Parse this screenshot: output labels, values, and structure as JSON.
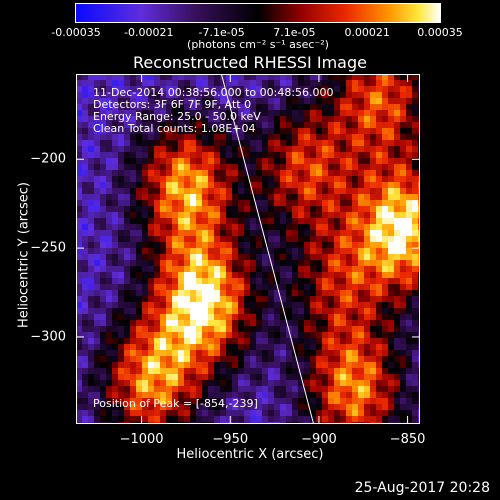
{
  "chart_data": {
    "type": "heatmap",
    "title": "Reconstructed RHESSI Image",
    "xlabel": "Heliocentric X (arcsec)",
    "ylabel": "Heliocentric Y (arcsec)",
    "xlim": [
      -1037,
      -843
    ],
    "ylim": [
      -349,
      -152
    ],
    "x_ticks": [
      -1000,
      -950,
      -900,
      -850
    ],
    "y_ticks": [
      -200,
      -250,
      -300
    ],
    "colorbar": {
      "ticks": [
        "-0.00035",
        "-0.00021",
        "-7.1e-05",
        "7.1e-05",
        "0.00021",
        "0.00035"
      ],
      "unit": "(photons cm⁻² s⁻¹ asec⁻²)",
      "range": [
        -0.00035,
        0.00035
      ]
    },
    "sources": [
      {
        "x": -975,
        "y": -215,
        "intensity": 0.85
      },
      {
        "x": -965,
        "y": -280,
        "intensity": 1.0
      },
      {
        "x": -995,
        "y": -325,
        "intensity": 0.8
      },
      {
        "x": -908,
        "y": -205,
        "intensity": 0.65
      },
      {
        "x": -865,
        "y": -165,
        "intensity": 0.7
      },
      {
        "x": -852,
        "y": -239,
        "intensity": 1.0
      },
      {
        "x": -890,
        "y": -270,
        "intensity": 0.5
      },
      {
        "x": -880,
        "y": -330,
        "intensity": 0.8
      }
    ],
    "limb_line": [
      [
        -955,
        -152
      ],
      [
        -903,
        -349
      ]
    ],
    "peak_position": [
      -854,
      -239
    ]
  },
  "annotations": {
    "time_range": "11-Dec-2014 00:38:56.000 to 00:48:56.000",
    "detectors": "Detectors: 3F 6F 7F 9F, Att 0",
    "energy": "Energy Range: 25.0 - 50.0 keV",
    "clean": "Clean    Total counts: 1.08E+04",
    "peak": "Position of Peak = [-854,-239]"
  },
  "footer_date": "25-Aug-2017 20:28"
}
